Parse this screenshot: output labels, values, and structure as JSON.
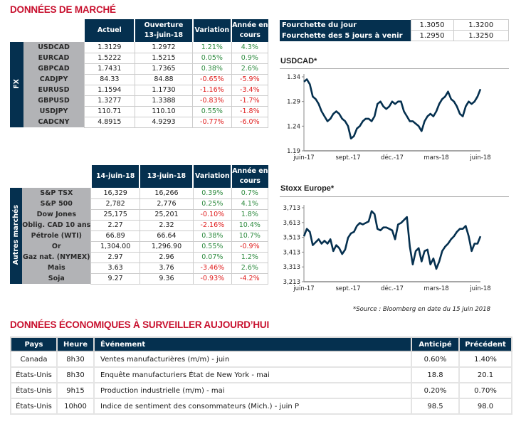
{
  "market": {
    "title": "DONNÉES DE MARCHÉ",
    "fx": {
      "side_label": "FX",
      "headers": [
        "Actuel",
        "Ouverture\n13-juin-18",
        "Variation",
        "Année en\ncours"
      ],
      "header_lines": [
        [
          "Actuel"
        ],
        [
          "Ouverture",
          "13-juin-18"
        ],
        [
          "Variation"
        ],
        [
          "Année en",
          "cours"
        ]
      ],
      "rows": [
        {
          "name": "USDCAD",
          "a": "1.3129",
          "b": "1.2972",
          "var": "1.21%",
          "ytd": "4.3%",
          "var_sign": "pos",
          "ytd_sign": "pos"
        },
        {
          "name": "EURCAD",
          "a": "1.5222",
          "b": "1.5215",
          "var": "0.05%",
          "ytd": "0.9%",
          "var_sign": "pos",
          "ytd_sign": "pos"
        },
        {
          "name": "GBPCAD",
          "a": "1.7431",
          "b": "1.7365",
          "var": "0.38%",
          "ytd": "2.6%",
          "var_sign": "pos",
          "ytd_sign": "pos"
        },
        {
          "name": "CADJPY",
          "a": "84.33",
          "b": "84.88",
          "var": "-0.65%",
          "ytd": "-5.9%",
          "var_sign": "neg",
          "ytd_sign": "neg"
        },
        {
          "name": "EURUSD",
          "a": "1.1594",
          "b": "1.1730",
          "var": "-1.16%",
          "ytd": "-3.4%",
          "var_sign": "neg",
          "ytd_sign": "neg"
        },
        {
          "name": "GBPUSD",
          "a": "1.3277",
          "b": "1.3388",
          "var": "-0.83%",
          "ytd": "-1.7%",
          "var_sign": "neg",
          "ytd_sign": "neg"
        },
        {
          "name": "USDJPY",
          "a": "110.71",
          "b": "110.10",
          "var": "0.55%",
          "ytd": "-1.8%",
          "var_sign": "pos",
          "ytd_sign": "neg"
        },
        {
          "name": "CADCNY",
          "a": "4.8915",
          "b": "4.9293",
          "var": "-0.77%",
          "ytd": "-6.0%",
          "var_sign": "neg",
          "ytd_sign": "neg"
        }
      ]
    },
    "other": {
      "side_label": "Autres marchés",
      "header_lines": [
        [
          "14-juin-18"
        ],
        [
          "13-juin-18"
        ],
        [
          "Variation"
        ],
        [
          "Année en",
          "cours"
        ]
      ],
      "rows": [
        {
          "name": "S&P TSX",
          "a": "16,329",
          "b": "16,266",
          "var": "0.39%",
          "ytd": "0.7%",
          "var_sign": "pos",
          "ytd_sign": "pos"
        },
        {
          "name": "S&P 500",
          "a": "2,782",
          "b": "2,776",
          "var": "0.25%",
          "ytd": "4.1%",
          "var_sign": "pos",
          "ytd_sign": "pos"
        },
        {
          "name": "Dow Jones",
          "a": "25,175",
          "b": "25,201",
          "var": "-0.10%",
          "ytd": "1.8%",
          "var_sign": "neg",
          "ytd_sign": "pos"
        },
        {
          "name": "Oblig. CAD 10 ans",
          "a": "2.27",
          "b": "2.32",
          "var": "-2.16%",
          "ytd": "10.4%",
          "var_sign": "neg",
          "ytd_sign": "pos"
        },
        {
          "name": "Pétrole (WTI)",
          "a": "66.89",
          "b": "66.64",
          "var": "0.38%",
          "ytd": "10.7%",
          "var_sign": "pos",
          "ytd_sign": "pos"
        },
        {
          "name": "Or",
          "a": "1,304.00",
          "b": "1,296.90",
          "var": "0.55%",
          "ytd": "-0.9%",
          "var_sign": "pos",
          "ytd_sign": "neg"
        },
        {
          "name": "Gaz nat. (NYMEX)",
          "a": "2.97",
          "b": "2.96",
          "var": "0.07%",
          "ytd": "1.2%",
          "var_sign": "pos",
          "ytd_sign": "pos"
        },
        {
          "name": "Maïs",
          "a": "3.63",
          "b": "3.76",
          "var": "-3.46%",
          "ytd": "2.6%",
          "var_sign": "neg",
          "ytd_sign": "pos"
        },
        {
          "name": "Soja",
          "a": "9.27",
          "b": "9.36",
          "var": "-0.93%",
          "ytd": "-4.2%",
          "var_sign": "neg",
          "ytd_sign": "neg"
        }
      ]
    },
    "ranges": [
      {
        "label": "Fourchette du jour",
        "low": "1.3050",
        "high": "1.3200"
      },
      {
        "label": "Fourchette des 5 jours à venir",
        "low": "1.2950",
        "high": "1.3250"
      }
    ],
    "source": "*Source : Bloomberg en date du  15 juin 2018"
  },
  "chart_data": [
    {
      "type": "line",
      "title": "USDCAD*",
      "xlabel": "",
      "ylabel": "",
      "ylim": [
        1.19,
        1.34
      ],
      "yticks": [
        "1.34",
        "1.29",
        "1.24",
        "1.19"
      ],
      "ytick_values": [
        1.34,
        1.29,
        1.24,
        1.19
      ],
      "xticks": [
        "juin-17",
        "sept.-17",
        "déc.-17",
        "mars-18",
        "juin-18"
      ],
      "x_range": [
        0,
        12
      ],
      "xtick_positions": [
        0,
        3,
        6,
        9,
        12
      ],
      "series": [
        {
          "name": "USDCAD",
          "x": [
            0,
            0.2,
            0.4,
            0.6,
            0.8,
            1.0,
            1.2,
            1.4,
            1.6,
            1.8,
            2.0,
            2.2,
            2.4,
            2.6,
            2.8,
            3.0,
            3.2,
            3.4,
            3.6,
            3.8,
            4.0,
            4.2,
            4.4,
            4.6,
            4.8,
            5.0,
            5.2,
            5.4,
            5.6,
            5.8,
            6.0,
            6.2,
            6.4,
            6.6,
            6.8,
            7.0,
            7.2,
            7.4,
            7.6,
            7.8,
            8.0,
            8.2,
            8.4,
            8.6,
            8.8,
            9.0,
            9.2,
            9.4,
            9.6,
            9.8,
            10.0,
            10.2,
            10.4,
            10.6,
            10.8,
            11.0,
            11.2,
            11.4,
            11.6,
            11.8,
            12.0
          ],
          "values": [
            1.33,
            1.335,
            1.325,
            1.3,
            1.295,
            1.285,
            1.27,
            1.26,
            1.25,
            1.255,
            1.265,
            1.27,
            1.265,
            1.255,
            1.25,
            1.24,
            1.215,
            1.22,
            1.235,
            1.24,
            1.25,
            1.255,
            1.255,
            1.25,
            1.26,
            1.285,
            1.29,
            1.28,
            1.275,
            1.28,
            1.29,
            1.285,
            1.29,
            1.29,
            1.27,
            1.26,
            1.25,
            1.25,
            1.245,
            1.24,
            1.23,
            1.25,
            1.26,
            1.265,
            1.26,
            1.27,
            1.285,
            1.295,
            1.3,
            1.31,
            1.295,
            1.29,
            1.28,
            1.265,
            1.26,
            1.28,
            1.29,
            1.285,
            1.29,
            1.3,
            1.315
          ]
        }
      ]
    },
    {
      "type": "line",
      "title": "Stoxx Europe*",
      "xlabel": "",
      "ylabel": "",
      "ylim": [
        3213,
        3713
      ],
      "yticks": [
        "3,713",
        "3,613",
        "3,513",
        "3,413",
        "3,313",
        "3,213"
      ],
      "ytick_values": [
        3713,
        3613,
        3513,
        3413,
        3313,
        3213
      ],
      "xticks": [
        "juin-17",
        "sept.-17",
        "déc.-17",
        "mars-18",
        "juin-18"
      ],
      "x_range": [
        0,
        12
      ],
      "xtick_positions": [
        0,
        3,
        6,
        9,
        12
      ],
      "series": [
        {
          "name": "Stoxx Europe",
          "x": [
            0,
            0.2,
            0.4,
            0.6,
            0.8,
            1.0,
            1.2,
            1.4,
            1.6,
            1.8,
            2.0,
            2.2,
            2.4,
            2.6,
            2.8,
            3.0,
            3.2,
            3.4,
            3.6,
            3.8,
            4.0,
            4.2,
            4.4,
            4.6,
            4.8,
            5.0,
            5.2,
            5.4,
            5.6,
            5.8,
            6.0,
            6.2,
            6.4,
            6.6,
            6.8,
            7.0,
            7.2,
            7.4,
            7.6,
            7.8,
            8.0,
            8.2,
            8.4,
            8.6,
            8.8,
            9.0,
            9.2,
            9.4,
            9.6,
            9.8,
            10.0,
            10.2,
            10.4,
            10.6,
            10.8,
            11.0,
            11.2,
            11.4,
            11.6,
            11.8,
            12.0
          ],
          "values": [
            3520,
            3570,
            3550,
            3460,
            3480,
            3500,
            3470,
            3490,
            3470,
            3500,
            3420,
            3460,
            3440,
            3400,
            3430,
            3510,
            3540,
            3550,
            3590,
            3610,
            3600,
            3610,
            3620,
            3690,
            3670,
            3570,
            3560,
            3580,
            3580,
            3570,
            3560,
            3500,
            3600,
            3610,
            3630,
            3650,
            3450,
            3330,
            3420,
            3440,
            3350,
            3420,
            3430,
            3330,
            3370,
            3300,
            3350,
            3420,
            3450,
            3470,
            3500,
            3520,
            3550,
            3570,
            3570,
            3590,
            3520,
            3420,
            3470,
            3470,
            3520
          ]
        }
      ]
    }
  ],
  "economic": {
    "title": "DONNÉES ÉCONOMIQUES À SURVEILLER AUJOURD’HUI",
    "headers": {
      "country": "Pays",
      "time": "Heure",
      "event": "Événement",
      "expected": "Anticipé",
      "previous": "Précédent"
    },
    "rows": [
      {
        "country": "Canada",
        "time": "8h30",
        "event": "Ventes manufacturières (m/m) - juin",
        "expected": "0.60%",
        "previous": "1.40%"
      },
      {
        "country": "États-Unis",
        "time": "8h30",
        "event": "Enquête manufacturiers État de New York - mai",
        "expected": "18.8",
        "previous": "20.1"
      },
      {
        "country": "États-Unis",
        "time": "9h15",
        "event": "Production industrielle (m/m) - mai",
        "expected": "0.20%",
        "previous": "0.70%"
      },
      {
        "country": "États-Unis",
        "time": "10h00",
        "event": "Indice de sentiment des consommateurs (Mich.) - juin P",
        "expected": "98.5",
        "previous": "98.0"
      }
    ]
  },
  "colors": {
    "navy": "#05304f",
    "red": "#c8102e",
    "positive": "#2e8b3f",
    "negative": "#e02020",
    "gray": "#b2b3b6"
  }
}
